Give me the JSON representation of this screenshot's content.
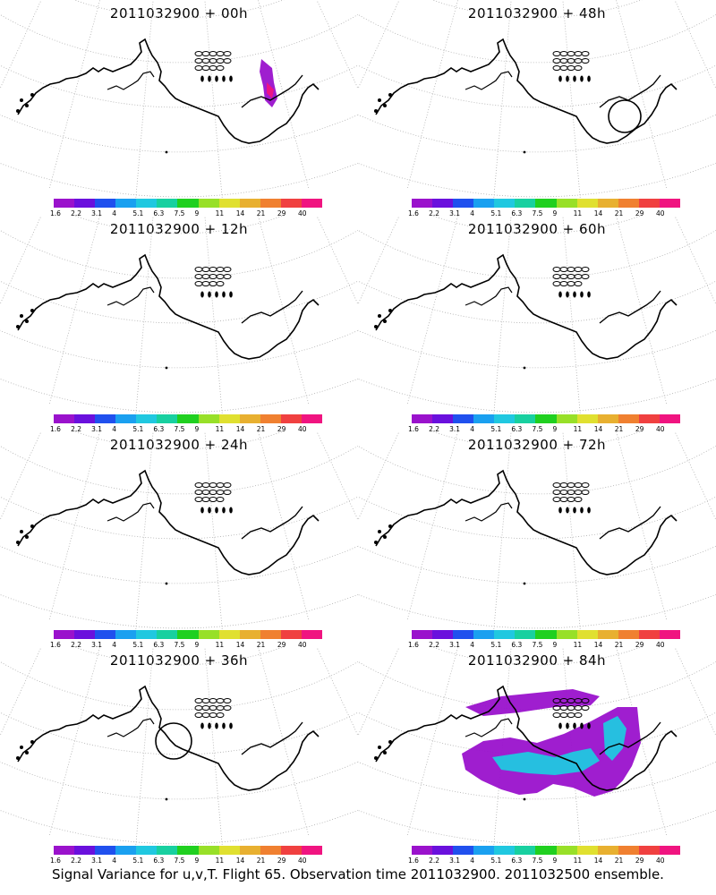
{
  "panels": [
    {
      "title": "2011032900 + 00h"
    },
    {
      "title": "2011032900 + 48h"
    },
    {
      "title": "2011032900 + 12h"
    },
    {
      "title": "2011032900 + 60h"
    },
    {
      "title": "2011032900 + 24h"
    },
    {
      "title": "2011032900 + 72h"
    },
    {
      "title": "2011032900 + 36h"
    },
    {
      "title": "2011032900 + 84h"
    }
  ],
  "colorbar": {
    "ticks": [
      "1.6",
      "2.2",
      "3.1",
      "4",
      "5.1",
      "6.3",
      "7.5",
      "9",
      "11",
      "14",
      "21",
      "29",
      "40"
    ],
    "colors": [
      "#9a12cc",
      "#6a10dd",
      "#2050ee",
      "#1aa0f0",
      "#20c8e0",
      "#18d0a0",
      "#20d020",
      "#98e028",
      "#e0e030",
      "#e8b030",
      "#f08030",
      "#f04040",
      "#f01480"
    ]
  },
  "footer": "Signal Variance for u,v,T. Flight 65. Observation time 2011032900. 2011032500 ensemble."
}
